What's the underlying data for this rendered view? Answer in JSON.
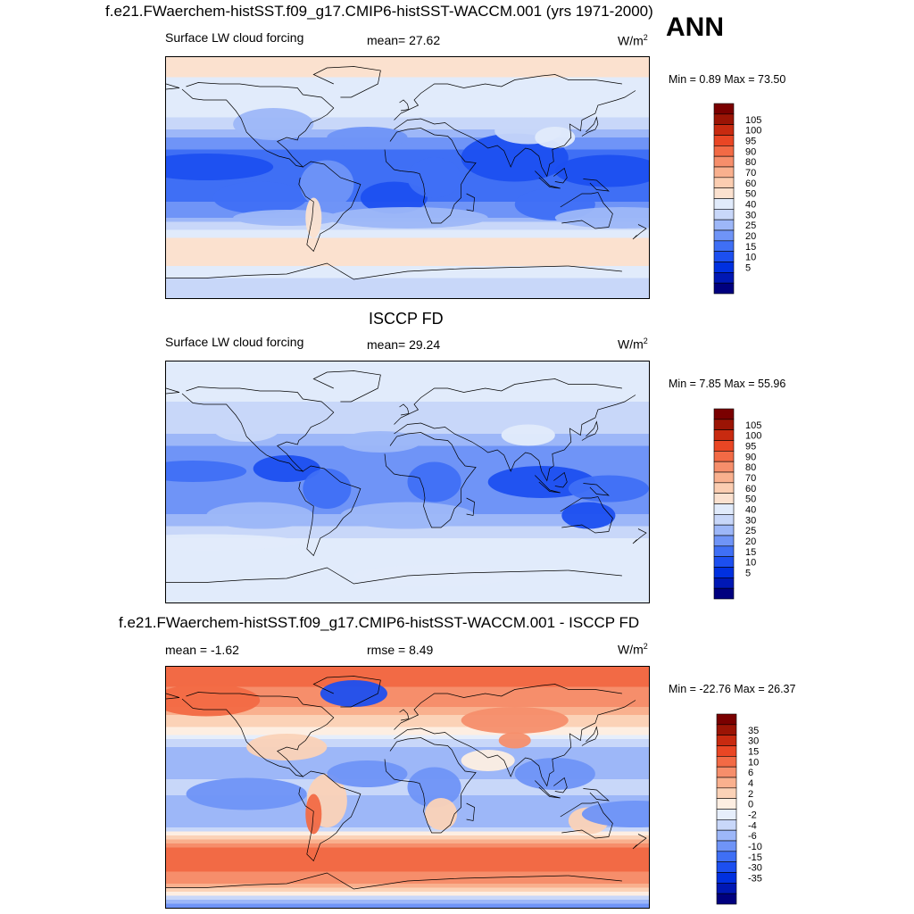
{
  "header": {
    "title": "f.e21.FWaerchem-histSST.f09_g17.CMIP6-histSST-WACCM.001 (yrs 1971-2000)",
    "season": "ANN"
  },
  "colors": {
    "abs_scale": [
      "#00007f",
      "#0018b4",
      "#0030e0",
      "#1c4ff0",
      "#3f6ff5",
      "#6f94f7",
      "#9db7f8",
      "#c8d7f9",
      "#e1ebfb",
      "#fbe1cf",
      "#fbcdb1",
      "#f9b08e",
      "#f68e6b",
      "#f26a45",
      "#e94624",
      "#c82a10",
      "#9b1405",
      "#7a0000"
    ],
    "diff_scale": [
      "#00007f",
      "#0018b4",
      "#0030e0",
      "#1c4ff0",
      "#3f6ff5",
      "#6f94f7",
      "#9db7f8",
      "#c8d7f9",
      "#e6eefb",
      "#fdeee2",
      "#fbd2b7",
      "#f9b08e",
      "#f68e6b",
      "#f26a45",
      "#e94624",
      "#c82a10",
      "#9b1405",
      "#7a0000"
    ]
  },
  "panels": [
    {
      "heading": "",
      "left_label": "Surface LW cloud forcing",
      "center_label": "mean=  27.62",
      "units": "W/m",
      "units_sup": "2",
      "minmax": "Min =   0.89 Max =  73.50",
      "colorbar_labels": [
        "105",
        "100",
        "95",
        "90",
        "80",
        "70",
        "60",
        "50",
        "40",
        "30",
        "25",
        "20",
        "15",
        "10",
        "5"
      ]
    },
    {
      "heading": "ISCCP FD",
      "left_label": "Surface LW cloud forcing",
      "center_label": "mean=  29.24",
      "units": "W/m",
      "units_sup": "2",
      "minmax": "Min =   7.85 Max =  55.96",
      "colorbar_labels": [
        "105",
        "100",
        "95",
        "90",
        "80",
        "70",
        "60",
        "50",
        "40",
        "30",
        "25",
        "20",
        "15",
        "10",
        "5"
      ]
    },
    {
      "heading": "f.e21.FWaerchem-histSST.f09_g17.CMIP6-histSST-WACCM.001 - ISCCP FD",
      "left_label": "mean =  -1.62",
      "center_label": "rmse =   8.49",
      "units": "W/m",
      "units_sup": "2",
      "minmax": "Min = -22.76 Max =  26.37",
      "colorbar_labels": [
        "35",
        "30",
        "15",
        "10",
        "6",
        "4",
        "2",
        "0",
        "-2",
        "-4",
        "-6",
        "-10",
        "-15",
        "-30",
        "-35"
      ]
    }
  ],
  "chart_data": [
    {
      "type": "heatmap",
      "title": "Surface LW cloud forcing",
      "units": "W/m2",
      "mean": 27.62,
      "min": 0.89,
      "max": 73.5,
      "contour_levels": [
        5,
        10,
        15,
        20,
        25,
        30,
        40,
        50,
        60,
        70,
        80,
        90,
        95,
        100,
        105
      ],
      "latitude_band_pattern": {
        "lat": [
          -90,
          -75,
          -60,
          -45,
          -30,
          -15,
          0,
          15,
          30,
          45,
          60,
          75,
          90
        ],
        "approx_value": [
          30,
          40,
          55,
          52,
          25,
          18,
          20,
          18,
          24,
          40,
          45,
          50,
          55
        ]
      }
    },
    {
      "type": "heatmap",
      "title": "Surface LW cloud forcing",
      "units": "W/m2",
      "mean": 29.24,
      "min": 7.85,
      "max": 55.96,
      "contour_levels": [
        5,
        10,
        15,
        20,
        25,
        30,
        40,
        50,
        60,
        70,
        80,
        90,
        95,
        100,
        105
      ],
      "latitude_band_pattern": {
        "lat": [
          -90,
          -75,
          -60,
          -45,
          -30,
          -15,
          0,
          15,
          30,
          45,
          60,
          75,
          90
        ],
        "approx_value": [
          40,
          42,
          45,
          44,
          28,
          22,
          20,
          22,
          26,
          38,
          40,
          42,
          42
        ]
      }
    },
    {
      "type": "heatmap",
      "title": "f.e21.FWaerchem-histSST.f09_g17.CMIP6-histSST-WACCM.001 - ISCCP FD",
      "units": "W/m2",
      "mean": -1.62,
      "rmse": 8.49,
      "min": -22.76,
      "max": 26.37,
      "contour_levels": [
        -35,
        -30,
        -15,
        -10,
        -6,
        -4,
        -2,
        0,
        2,
        4,
        6,
        10,
        15,
        30,
        35
      ],
      "latitude_band_pattern": {
        "lat": [
          -90,
          -75,
          -60,
          -45,
          -30,
          -15,
          0,
          15,
          30,
          45,
          60,
          75,
          90
        ],
        "approx_value": [
          -10,
          5,
          12,
          10,
          -4,
          -6,
          -3,
          -6,
          -4,
          2,
          6,
          10,
          12
        ]
      }
    }
  ]
}
